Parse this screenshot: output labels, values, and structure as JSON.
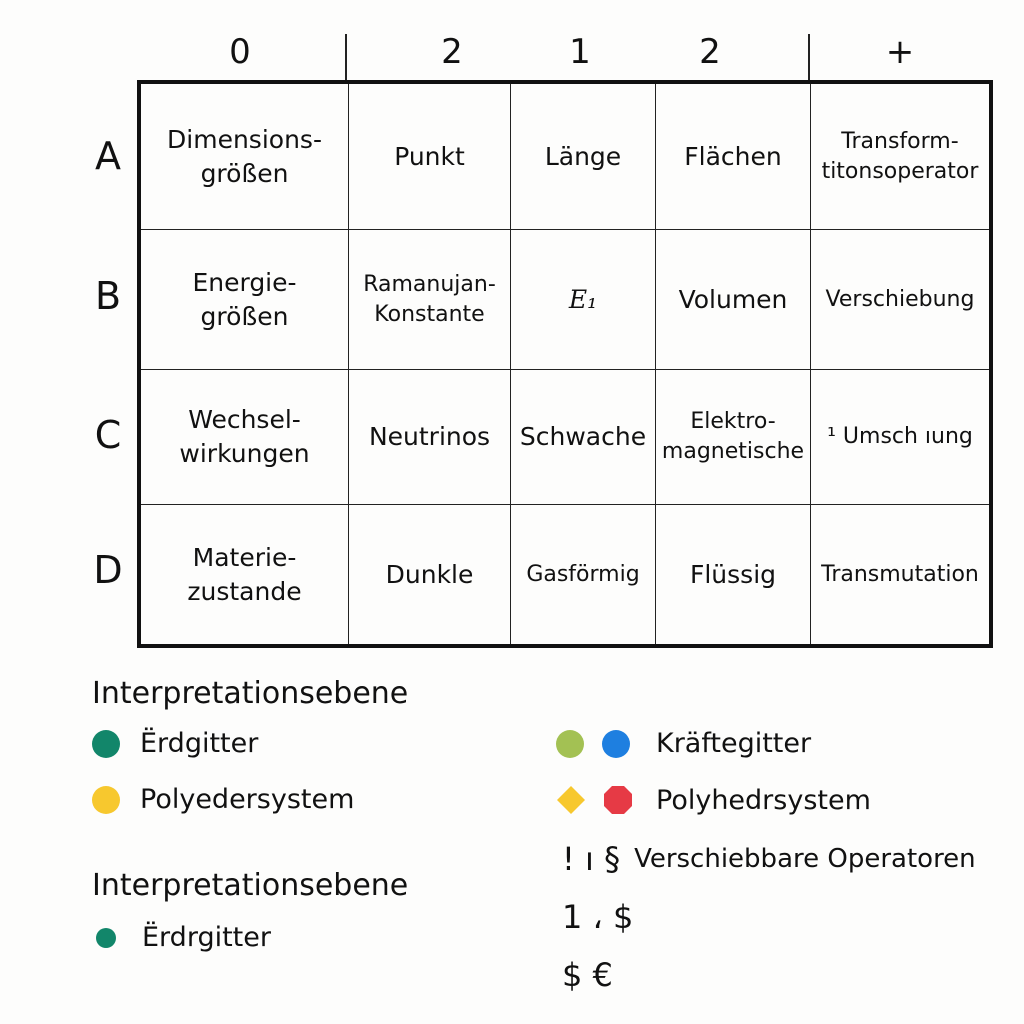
{
  "column_headers": [
    "0",
    "2",
    "1",
    "2",
    "+"
  ],
  "row_headers": [
    "A",
    "B",
    "C",
    "D"
  ],
  "cells": [
    [
      "Dimensions-\ngrößen",
      "Punkt",
      "Länge",
      "Flächen",
      "Transform-\ntitonsoperator"
    ],
    [
      "Energie-\ngrößen",
      "Ramanujan-\nKonstante",
      "E₁",
      "Volumen",
      "Verschiebung"
    ],
    [
      "Wechsel-\nwirkungen",
      "Neutrinos",
      "Schwache",
      "Elektro-\nmagnetische",
      "¹ Umsch ıung"
    ],
    [
      "Materie-\nzustande",
      "Dunkle",
      "Gasförmig",
      "Flüssig",
      "Transmutation"
    ]
  ],
  "legend": {
    "heading_1": "Interpretationsebene",
    "heading_2": "Interpretationsebene",
    "items_left": [
      {
        "label": "Ërdgitter",
        "color": "#12866a"
      },
      {
        "label": "Polyedersystem",
        "color": "#f7c82e"
      }
    ],
    "items_right": [
      {
        "label": "Kräftegitter",
        "colors": [
          "#a3c153",
          "#1e7fe0"
        ]
      },
      {
        "label": "Polyhedrsystem",
        "colors": [
          "#f7c82e",
          "#e63a45"
        ]
      }
    ],
    "operator_line": {
      "symbols": "! ı §",
      "label": "Verschiebbare Operatoren"
    },
    "symbol_line_2": "1 ، $",
    "symbol_line_3": "$  €",
    "item_bottom": {
      "label": "Ërdrgitter",
      "color": "#12866a"
    }
  }
}
